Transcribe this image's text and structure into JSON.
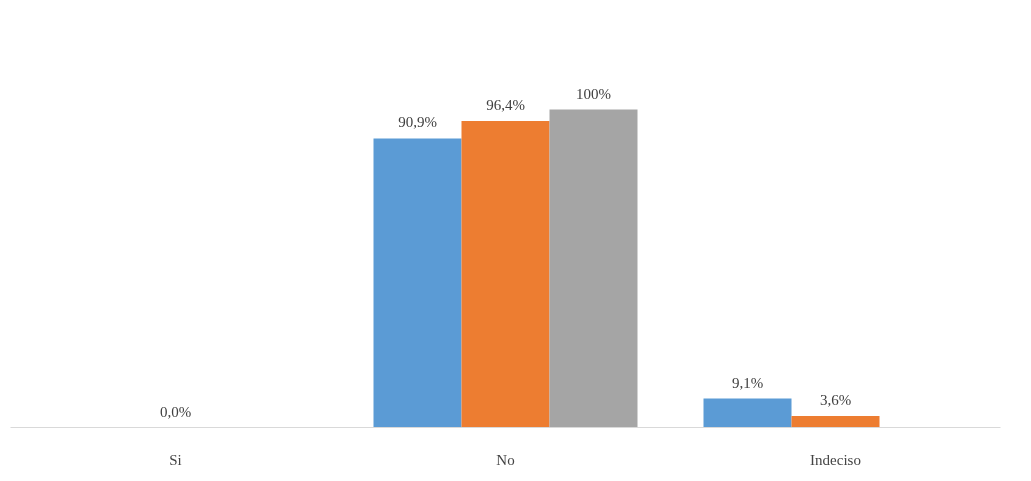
{
  "chart_data": {
    "type": "bar",
    "categories": [
      "Si",
      "No",
      "Indeciso"
    ],
    "series": [
      {
        "color": "#5b9bd5",
        "values": [
          null,
          90.9,
          9.1
        ],
        "value_labels": [
          null,
          "90,9%",
          "9,1%"
        ]
      },
      {
        "color": "#ed7d31",
        "values": [
          0,
          96.4,
          3.6
        ],
        "value_labels": [
          "0,0%",
          "96,4%",
          "3,6%"
        ]
      },
      {
        "color": "#a5a5a5",
        "values": [
          null,
          100,
          null
        ],
        "value_labels": [
          null,
          "100%",
          null
        ]
      }
    ],
    "grid": false
  }
}
